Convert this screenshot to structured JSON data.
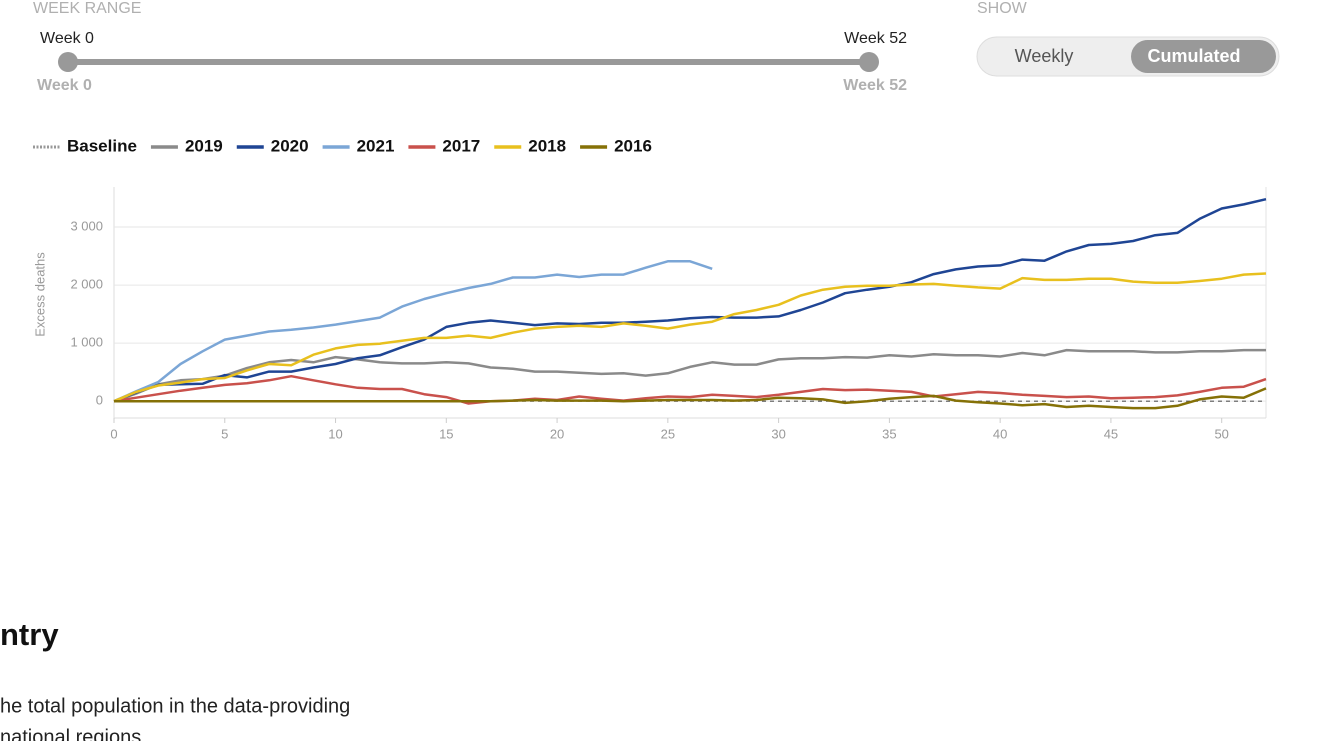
{
  "controls": {
    "week_range_title": "WEEK RANGE",
    "range_start_top": "Week 0",
    "range_end_top": "Week 52",
    "range_start_bottom": "Week 0",
    "range_end_bottom": "Week 52",
    "show_title": "SHOW",
    "show_options": [
      "Weekly",
      "Cumulated"
    ]
  },
  "chart_data": {
    "type": "line",
    "ylabel": "Excess deaths",
    "x": [
      0,
      1,
      2,
      3,
      4,
      5,
      6,
      7,
      8,
      9,
      10,
      11,
      12,
      13,
      14,
      15,
      16,
      17,
      18,
      19,
      20,
      21,
      22,
      23,
      24,
      25,
      26,
      27,
      28,
      29,
      30,
      31,
      32,
      33,
      34,
      35,
      36,
      37,
      38,
      39,
      40,
      41,
      42,
      43,
      44,
      45,
      46,
      47,
      48,
      49,
      50,
      51,
      52
    ],
    "xlim": [
      0,
      52
    ],
    "xticks": [
      0,
      5,
      10,
      15,
      20,
      25,
      30,
      35,
      40,
      45,
      50
    ],
    "ylim": [
      -290,
      3690
    ],
    "yticks": [
      0,
      {
        "value": 1000,
        "label": "1 000"
      },
      {
        "value": 2000,
        "label": "2 000"
      },
      {
        "value": 3000,
        "label": "3 000"
      }
    ],
    "grid": true,
    "baseline": {
      "name": "Baseline",
      "value": 0,
      "color": "#555"
    },
    "series": [
      {
        "name": "2019",
        "color": "#8a8a8a",
        "values": [
          0,
          130,
          290,
          360,
          380,
          440,
          570,
          670,
          710,
          670,
          760,
          720,
          670,
          650,
          650,
          670,
          650,
          580,
          560,
          510,
          510,
          490,
          470,
          480,
          440,
          480,
          590,
          670,
          630,
          630,
          720,
          740,
          740,
          760,
          750,
          790,
          770,
          810,
          790,
          790,
          770,
          830,
          790,
          880,
          860,
          860,
          860,
          840,
          840,
          860,
          860,
          880,
          880
        ]
      },
      {
        "name": "2020",
        "color": "#1f4594",
        "values": [
          0,
          150,
          280,
          290,
          300,
          450,
          410,
          510,
          510,
          580,
          640,
          740,
          790,
          930,
          1060,
          1280,
          1350,
          1390,
          1350,
          1310,
          1340,
          1330,
          1350,
          1350,
          1370,
          1390,
          1430,
          1450,
          1440,
          1440,
          1460,
          1570,
          1700,
          1860,
          1920,
          1970,
          2050,
          2190,
          2270,
          2320,
          2340,
          2440,
          2420,
          2580,
          2690,
          2710,
          2760,
          2860,
          2900,
          3140,
          3320,
          3390,
          3480
        ]
      },
      {
        "name": "2021",
        "color": "#7ba6d6",
        "values": [
          0,
          170,
          330,
          640,
          860,
          1060,
          1130,
          1200,
          1230,
          1270,
          1320,
          1380,
          1440,
          1630,
          1760,
          1860,
          1950,
          2020,
          2130,
          2130,
          2180,
          2140,
          2180,
          2180,
          2300,
          2410,
          2410,
          2280,
          null,
          null,
          null,
          null,
          null,
          null,
          null,
          null,
          null,
          null,
          null,
          null,
          null,
          null,
          null,
          null,
          null,
          null,
          null,
          null,
          null,
          null,
          null,
          null,
          null
        ]
      },
      {
        "name": "2017",
        "color": "#c9514c",
        "values": [
          0,
          60,
          120,
          180,
          230,
          280,
          310,
          360,
          430,
          360,
          290,
          230,
          210,
          210,
          120,
          70,
          -40,
          0,
          10,
          40,
          20,
          80,
          40,
          10,
          50,
          80,
          70,
          110,
          90,
          70,
          110,
          160,
          210,
          190,
          200,
          180,
          160,
          80,
          120,
          160,
          140,
          110,
          90,
          70,
          80,
          50,
          60,
          70,
          100,
          160,
          230,
          250,
          380
        ]
      },
      {
        "name": "2018",
        "color": "#e8c01e",
        "values": [
          0,
          160,
          270,
          320,
          380,
          400,
          530,
          640,
          620,
          800,
          910,
          970,
          990,
          1040,
          1090,
          1090,
          1130,
          1090,
          1180,
          1250,
          1280,
          1300,
          1280,
          1340,
          1300,
          1250,
          1320,
          1370,
          1500,
          1570,
          1660,
          1820,
          1920,
          1970,
          1990,
          1990,
          2010,
          2020,
          1990,
          1960,
          1940,
          2120,
          2090,
          2090,
          2110,
          2110,
          2060,
          2040,
          2040,
          2070,
          2110,
          2180,
          2200
        ]
      },
      {
        "name": "2016",
        "color": "#857107",
        "values": [
          0,
          0,
          0,
          0,
          0,
          0,
          0,
          0,
          0,
          0,
          0,
          0,
          0,
          0,
          0,
          0,
          0,
          0,
          10,
          20,
          10,
          10,
          10,
          0,
          10,
          20,
          20,
          20,
          10,
          20,
          60,
          50,
          30,
          -30,
          0,
          40,
          70,
          90,
          10,
          -20,
          -40,
          -70,
          -50,
          -100,
          -80,
          -100,
          -120,
          -120,
          -80,
          30,
          80,
          60,
          220
        ]
      }
    ]
  },
  "section": {
    "heading": "ntry",
    "lines": [
      "he total population in the data-providing",
      "national regions"
    ]
  }
}
